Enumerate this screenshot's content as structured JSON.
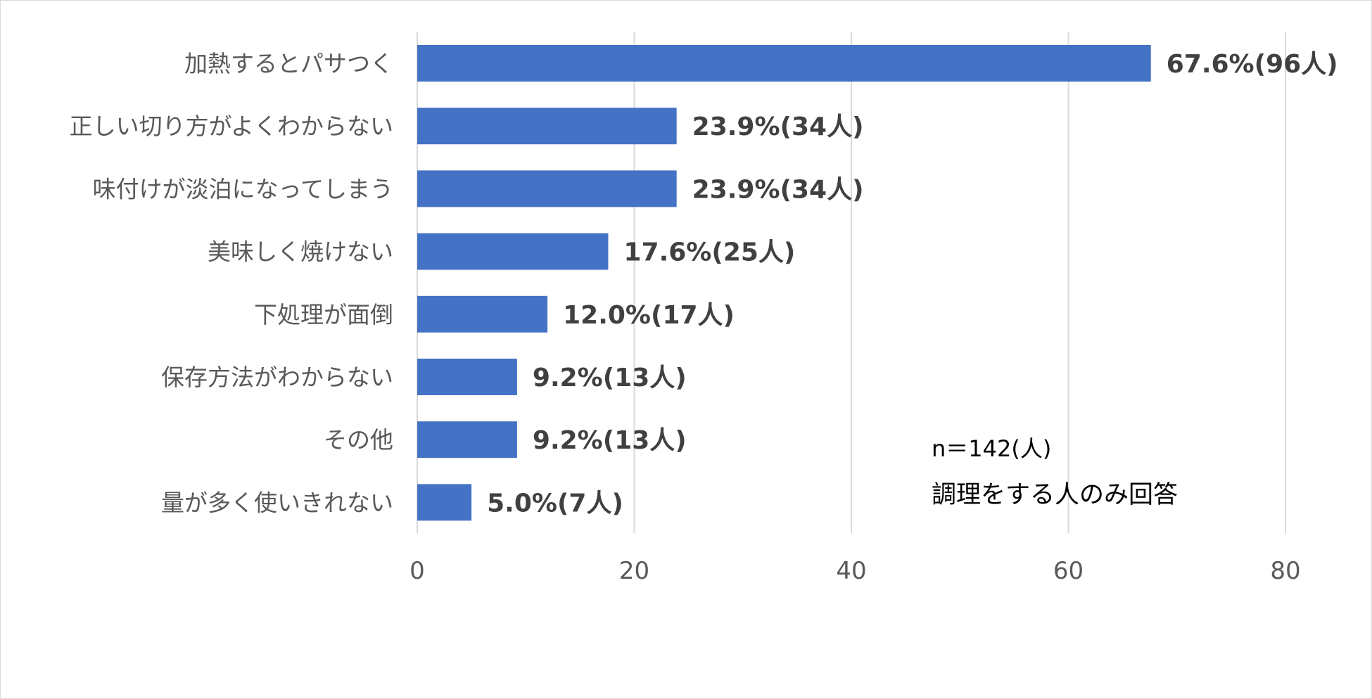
{
  "chart_data": {
    "type": "bar",
    "orientation": "horizontal",
    "categories": [
      "加熱するとパサつく",
      "正しい切り方がよくわからない",
      "味付けが淡泊になってしまう",
      "美味しく焼けない",
      "下処理が面倒",
      "保存方法がわからない",
      "その他",
      "量が多く使いきれない"
    ],
    "values": [
      67.6,
      23.9,
      23.9,
      17.6,
      12.0,
      9.2,
      9.2,
      5.0
    ],
    "data_labels": [
      "67.6%(96人)",
      "23.9%(34人)",
      "23.9%(34人)",
      "17.6%(25人)",
      "12.0%(17人)",
      "9.2%(13人)",
      "9.2%(13人)",
      "5.0%(7人)"
    ],
    "xlim": [
      0,
      80
    ],
    "xticks": [
      0,
      20,
      40,
      60,
      80
    ],
    "title": "",
    "xlabel": "",
    "ylabel": "",
    "grid": "vertical",
    "bar_color": "#4472c4",
    "annotations": [
      "n＝142(人)",
      "調理をする人のみ回答"
    ]
  }
}
